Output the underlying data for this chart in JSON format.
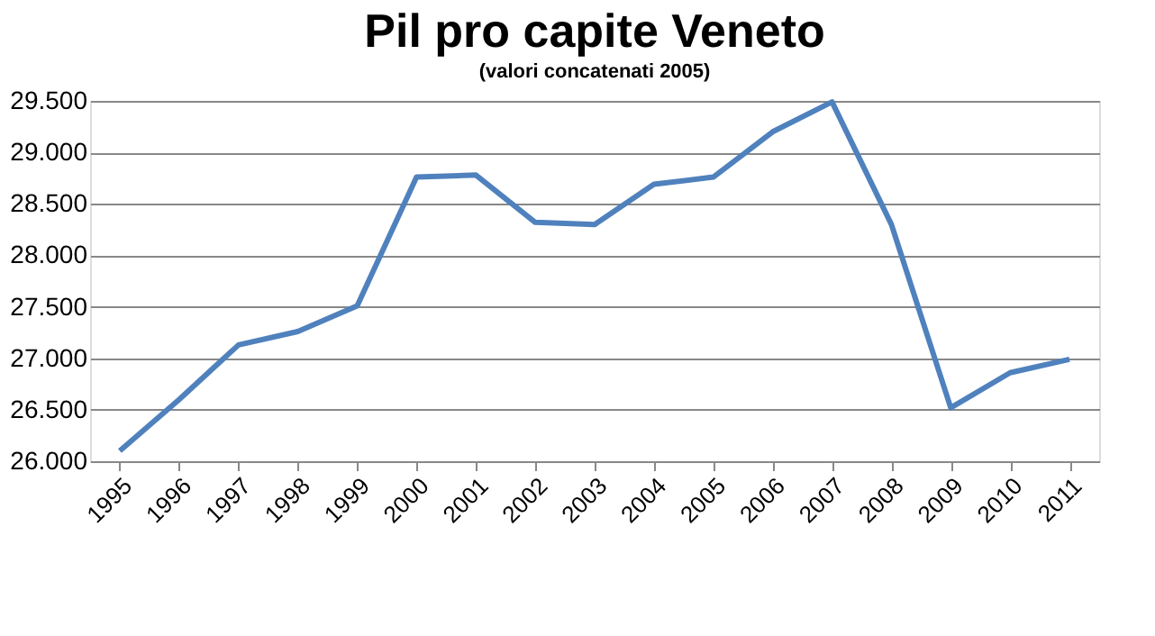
{
  "chart_data": {
    "type": "line",
    "title": "Pil pro capite Veneto",
    "subtitle": "(valori concatenati 2005)",
    "categories": [
      "1995",
      "1996",
      "1997",
      "1998",
      "1999",
      "2000",
      "2001",
      "2002",
      "2003",
      "2004",
      "2005",
      "2006",
      "2007",
      "2008",
      "2009",
      "2010",
      "2011"
    ],
    "series": [
      {
        "color": "#4f81bd",
        "values": [
          26100,
          26600,
          27130,
          27260,
          27510,
          28760,
          28780,
          28320,
          28300,
          28690,
          28760,
          29200,
          29490,
          28300,
          26520,
          26860,
          26990
        ]
      }
    ],
    "ylim": [
      26000,
      29500
    ],
    "yticks": [
      {
        "value": 26000,
        "label": "26.000"
      },
      {
        "value": 26500,
        "label": "26.500"
      },
      {
        "value": 27000,
        "label": "27.000"
      },
      {
        "value": 27500,
        "label": "27.500"
      },
      {
        "value": 28000,
        "label": "28.000"
      },
      {
        "value": 28500,
        "label": "28.500"
      },
      {
        "value": 29000,
        "label": "29.000"
      },
      {
        "value": 29500,
        "label": "29.500"
      }
    ],
    "grid": "y",
    "legend": false,
    "marker": "none",
    "line_style": "solid"
  }
}
